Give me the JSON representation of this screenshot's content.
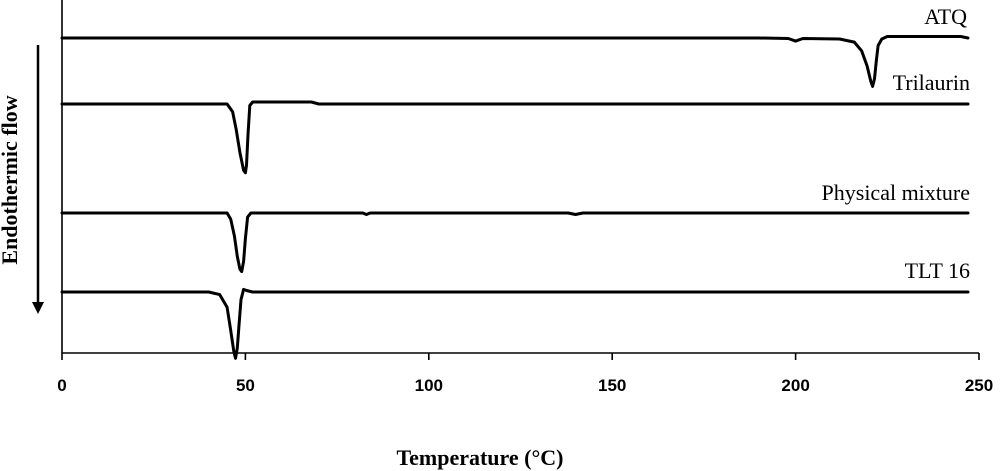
{
  "chart_data": {
    "type": "line",
    "xlabel": "Temperature (°C)",
    "ylabel": "Endothermic flow",
    "xlim": [
      0,
      250
    ],
    "x_ticks": [
      0,
      50,
      100,
      150,
      200,
      250
    ],
    "y_ticks_shown": false,
    "grid": false,
    "legend": "none",
    "series": [
      {
        "name": "ATQ",
        "baseline": 0,
        "points": [
          [
            0,
            0
          ],
          [
            190,
            0
          ],
          [
            198,
            0.1
          ],
          [
            200,
            0.6
          ],
          [
            202,
            0.1
          ],
          [
            212,
            0.2
          ],
          [
            216,
            0.8
          ],
          [
            218,
            2.5
          ],
          [
            219.5,
            5.5
          ],
          [
            220.5,
            8.5
          ],
          [
            221,
            9.5
          ],
          [
            221.5,
            8
          ],
          [
            222,
            4.5
          ],
          [
            222.5,
            1.5
          ],
          [
            223.5,
            0.2
          ],
          [
            225,
            -0.3
          ],
          [
            245,
            -0.3
          ],
          [
            247,
            0
          ]
        ]
      },
      {
        "name": "Trilaurin",
        "baseline": 0,
        "points": [
          [
            0,
            0
          ],
          [
            45,
            0
          ],
          [
            46.5,
            1.5
          ],
          [
            47.5,
            5
          ],
          [
            48.5,
            9.5
          ],
          [
            49.5,
            13
          ],
          [
            50,
            13.5
          ],
          [
            50.3,
            12
          ],
          [
            50.7,
            6
          ],
          [
            51.2,
            0.3
          ],
          [
            52,
            -0.4
          ],
          [
            68,
            -0.4
          ],
          [
            70,
            0
          ],
          [
            247,
            0
          ]
        ]
      },
      {
        "name": "Physical mixture",
        "baseline": 0,
        "points": [
          [
            0,
            0
          ],
          [
            45,
            0
          ],
          [
            46,
            1.2
          ],
          [
            47,
            4.5
          ],
          [
            47.8,
            8.5
          ],
          [
            48.5,
            11
          ],
          [
            49,
            11.5
          ],
          [
            49.5,
            9.5
          ],
          [
            50,
            5
          ],
          [
            50.6,
            0.8
          ],
          [
            51.5,
            0
          ],
          [
            82,
            0
          ],
          [
            83,
            0.3
          ],
          [
            84,
            0
          ],
          [
            138,
            0
          ],
          [
            140,
            0.3
          ],
          [
            142,
            0
          ],
          [
            247,
            0
          ]
        ]
      },
      {
        "name": "TLT 16",
        "baseline": 0,
        "points": [
          [
            0,
            0
          ],
          [
            40,
            0
          ],
          [
            43,
            0.5
          ],
          [
            45,
            3
          ],
          [
            46,
            7.5
          ],
          [
            46.8,
            11.5
          ],
          [
            47.3,
            13
          ],
          [
            47.8,
            11
          ],
          [
            48.3,
            6
          ],
          [
            48.8,
            1.5
          ],
          [
            49.5,
            -0.5
          ],
          [
            50.3,
            -0.3
          ],
          [
            52,
            0
          ],
          [
            247,
            0
          ]
        ]
      }
    ]
  }
}
